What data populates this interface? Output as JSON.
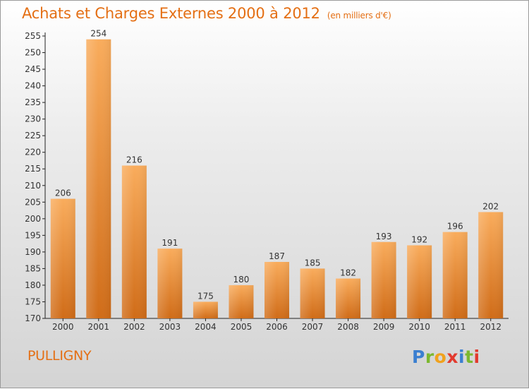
{
  "title": "Achats et Charges Externes 2000 à 2012",
  "unit_label": "(en milliers d'€)",
  "commune": "PULLIGNY",
  "logo": {
    "parts": [
      "P",
      "r",
      "o",
      "x",
      "i",
      "t",
      "i"
    ]
  },
  "colors": {
    "bar_light": "#f7a552",
    "bar_dark": "#d2701c",
    "title": "#e46f14"
  },
  "chart_data": {
    "type": "bar",
    "title": "Achats et Charges Externes 2000 à 2012",
    "xlabel": "",
    "ylabel": "",
    "categories": [
      "2000",
      "2001",
      "2002",
      "2003",
      "2004",
      "2005",
      "2006",
      "2007",
      "2008",
      "2009",
      "2010",
      "2011",
      "2012"
    ],
    "values": [
      206,
      254,
      216,
      191,
      175,
      180,
      187,
      185,
      182,
      193,
      192,
      196,
      202
    ],
    "ylim": [
      170,
      255
    ],
    "yticks": [
      170,
      175,
      180,
      185,
      190,
      195,
      200,
      205,
      210,
      215,
      220,
      225,
      230,
      235,
      240,
      245,
      250,
      255
    ],
    "grid": false,
    "legend": "none"
  }
}
